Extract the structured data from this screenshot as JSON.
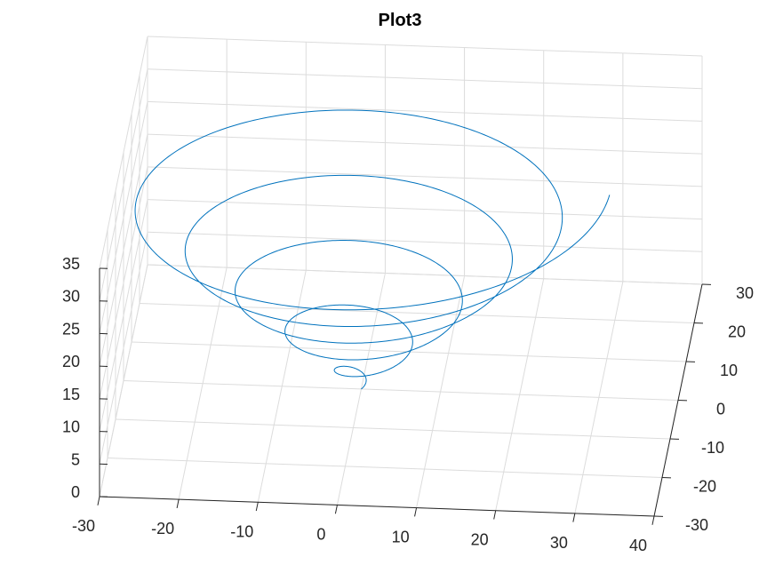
{
  "chart_data": {
    "type": "line",
    "title": "Plot3",
    "xlabel": "",
    "ylabel": "",
    "zlabel": "",
    "xlim": [
      -30,
      40
    ],
    "ylim": [
      -30,
      30
    ],
    "zlim": [
      0,
      35
    ],
    "x_ticks": [
      -30,
      -20,
      -10,
      0,
      10,
      20,
      30,
      40
    ],
    "y_ticks": [
      -30,
      -20,
      -10,
      0,
      10,
      20,
      30
    ],
    "z_ticks": [
      0,
      5,
      10,
      15,
      20,
      25,
      30,
      35
    ],
    "x_tick_labels": [
      "-30",
      "-20",
      "-10",
      "0",
      "10",
      "20",
      "30",
      "40"
    ],
    "y_tick_labels": [
      "-30",
      "-20",
      "-10",
      "0",
      "10",
      "20",
      "30"
    ],
    "z_tick_labels": [
      "0",
      "5",
      "10",
      "15",
      "20",
      "25",
      "30",
      "35"
    ],
    "grid": true,
    "series": [
      {
        "color": "#0072bd",
        "parametric": {
          "t_range": [
            0,
            31.4
          ],
          "x": "t*cos(t)",
          "y": "t*sin(t)",
          "z": "t"
        }
      }
    ]
  }
}
